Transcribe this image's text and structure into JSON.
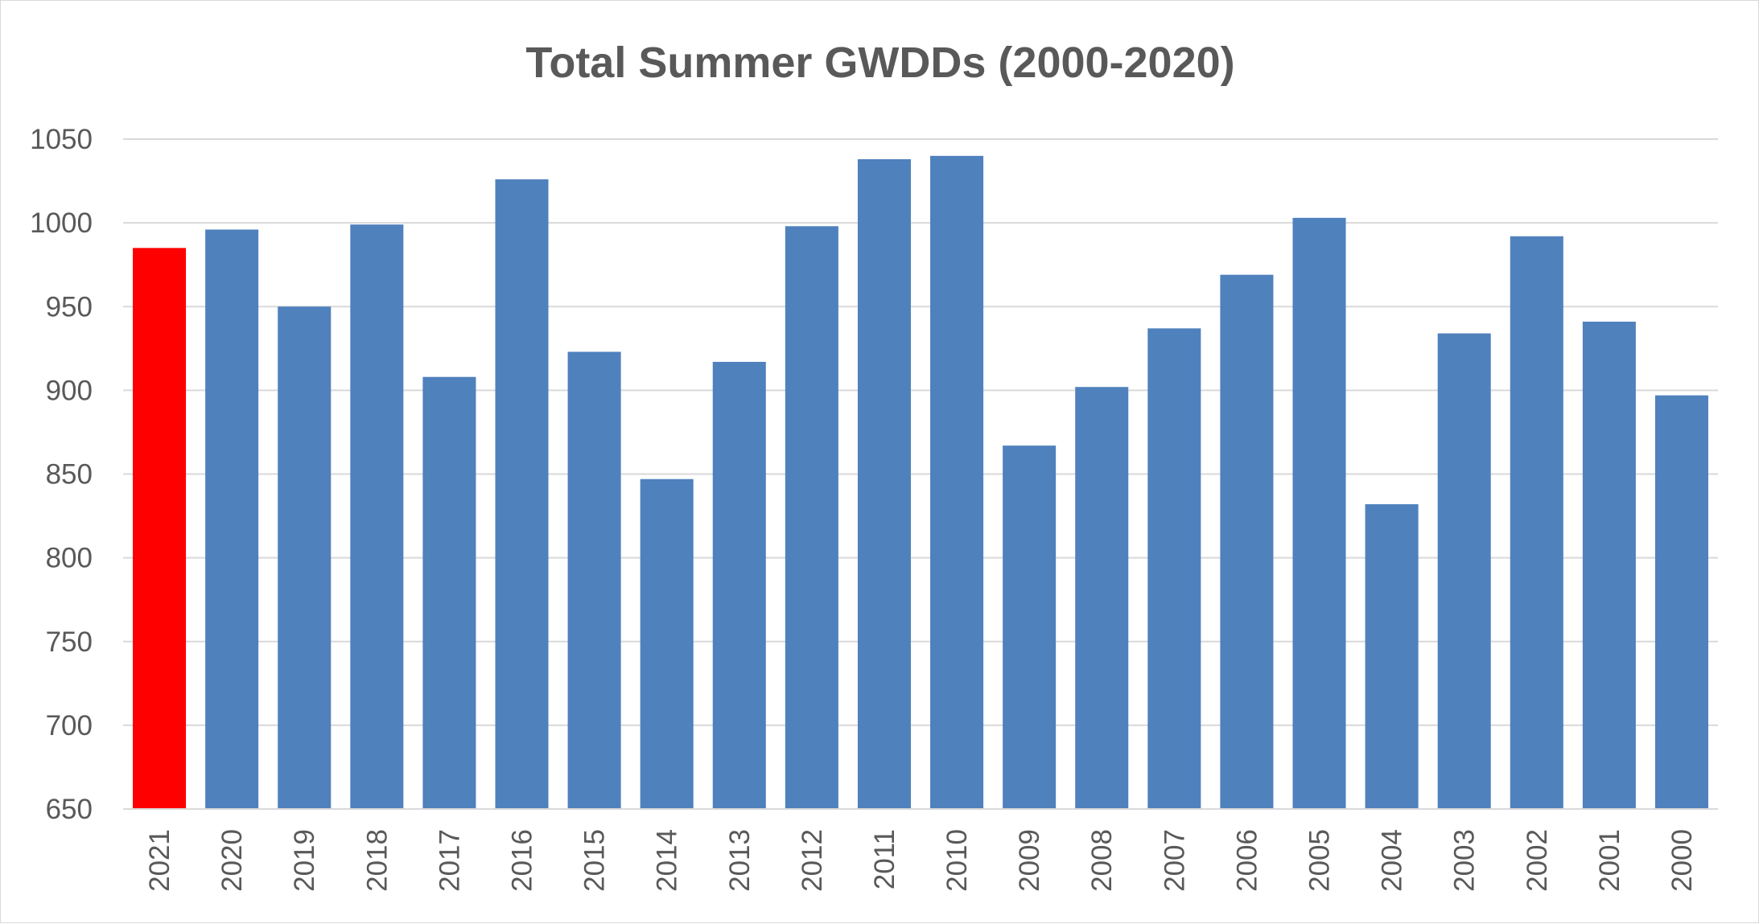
{
  "chart_data": {
    "type": "bar",
    "title": "Total Summer GWDDs (2000-2020)",
    "xlabel": "",
    "ylabel": "",
    "ylim": [
      650,
      1050
    ],
    "yticks": [
      650,
      700,
      750,
      800,
      850,
      900,
      950,
      1000,
      1050
    ],
    "grid": true,
    "legend": "none",
    "categories": [
      "2021",
      "2020",
      "2019",
      "2018",
      "2017",
      "2016",
      "2015",
      "2014",
      "2013",
      "2012",
      "2011",
      "2010",
      "2009",
      "2008",
      "2007",
      "2006",
      "2005",
      "2004",
      "2003",
      "2002",
      "2001",
      "2000"
    ],
    "values": [
      985,
      996,
      950,
      999,
      908,
      1026,
      923,
      847,
      917,
      998,
      1038,
      1040,
      867,
      902,
      937,
      969,
      1003,
      832,
      934,
      992,
      941,
      897
    ],
    "colors": {
      "default_bar": "#4f81bd",
      "highlight_bar": "#ff0000",
      "gridline": "#d9d9d9",
      "text": "#595959"
    },
    "highlight_category": "2021"
  }
}
